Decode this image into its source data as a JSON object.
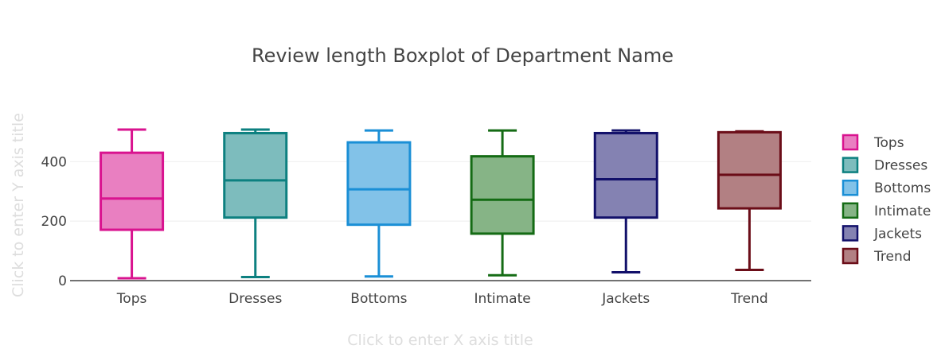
{
  "chart_data": {
    "type": "box",
    "title": "Review length Boxplot of Department Name",
    "xlabel_placeholder": "Click to enter X axis title",
    "ylabel_placeholder": "Click to enter Y axis title",
    "ylim": [
      0,
      540
    ],
    "yticks": [
      0,
      200,
      400
    ],
    "grid": true,
    "legend_position": "right",
    "categories": [
      "Tops",
      "Dresses",
      "Bottoms",
      "Intimate",
      "Jackets",
      "Trend"
    ],
    "series": [
      {
        "name": "Tops",
        "color": "#d9138f",
        "fill": "#e97fc1",
        "min": 8,
        "q1": 171,
        "median": 276,
        "q3": 430,
        "max": 508
      },
      {
        "name": "Dresses",
        "color": "#0d8080",
        "fill": "#7dbcbd",
        "min": 12,
        "q1": 212,
        "median": 337,
        "q3": 496,
        "max": 508
      },
      {
        "name": "Bottoms",
        "color": "#1a8fd6",
        "fill": "#82c2e8",
        "min": 14,
        "q1": 188,
        "median": 307,
        "q3": 465,
        "max": 505
      },
      {
        "name": "Intimate",
        "color": "#146b14",
        "fill": "#86b486",
        "min": 18,
        "q1": 158,
        "median": 272,
        "q3": 418,
        "max": 505
      },
      {
        "name": "Jackets",
        "color": "#12106a",
        "fill": "#8482b2",
        "min": 28,
        "q1": 212,
        "median": 341,
        "q3": 496,
        "max": 505
      },
      {
        "name": "Trend",
        "color": "#6b0d18",
        "fill": "#b28083",
        "min": 36,
        "q1": 243,
        "median": 356,
        "q3": 499,
        "max": 502
      }
    ]
  }
}
